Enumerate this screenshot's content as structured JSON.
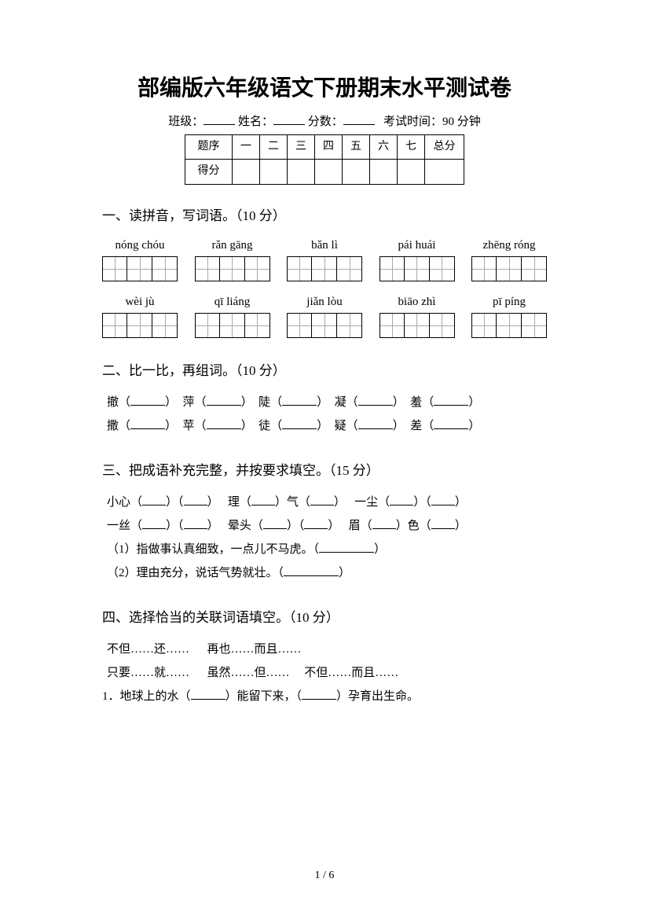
{
  "title": "部编版六年级语文下册期末水平测试卷",
  "info": {
    "class_label": "班级：",
    "name_label": "姓名：",
    "score_label": "分数：",
    "time_label": "考试时间：90 分钟"
  },
  "score_table": {
    "row1": [
      "题序",
      "一",
      "二",
      "三",
      "四",
      "五",
      "六",
      "七",
      "总分"
    ],
    "row2_label": "得分"
  },
  "section1": {
    "title": "一、读拼音，写词语。（10 分）",
    "row1_pinyin": [
      "nóng chóu",
      "rǎn gāng",
      "bǎn lì",
      "pái huái",
      "zhēng róng"
    ],
    "row2_pinyin": [
      "wèi  jù",
      "qī liáng",
      "jiǎn lòu",
      "biāo zhì",
      "pī píng"
    ],
    "cells_per_grid": 3
  },
  "section2": {
    "title": "二、比一比，再组词。（10 分）",
    "pairs": [
      [
        "撤",
        "萍",
        "陡",
        "凝",
        "羞"
      ],
      [
        "撒",
        "苹",
        "徒",
        "疑",
        "差"
      ]
    ]
  },
  "section3": {
    "title": "三、把成语补充完整，并按要求填空。（15 分）",
    "idioms_line1": [
      {
        "pre": "小心",
        "mid": "",
        "post": ""
      },
      {
        "pre": "理",
        "mid": "气",
        "post": ""
      },
      {
        "pre": "一尘",
        "mid": "",
        "post": ""
      }
    ],
    "idioms_line2": [
      {
        "pre": "一丝",
        "mid": "",
        "post": ""
      },
      {
        "pre": "晕头",
        "mid": "",
        "post": ""
      },
      {
        "pre": "眉",
        "mid": "色",
        "post": ""
      }
    ],
    "sub1": "（1）指做事认真细致，一点儿不马虎。（",
    "sub1_end": "）",
    "sub2": "（2）理由充分，说话气势就壮。（",
    "sub2_end": "）"
  },
  "section4": {
    "title": "四、选择恰当的关联词语填空。（10 分）",
    "opts_line1": [
      "不但……还……",
      "再也……而且……"
    ],
    "opts_line2": [
      "只要……就……",
      "虽然……但……",
      "不但……而且……"
    ],
    "q1_pre": "1．地球上的水（",
    "q1_mid": "）能留下来，（",
    "q1_post": "）孕育出生命。"
  },
  "page_number": "1 / 6"
}
